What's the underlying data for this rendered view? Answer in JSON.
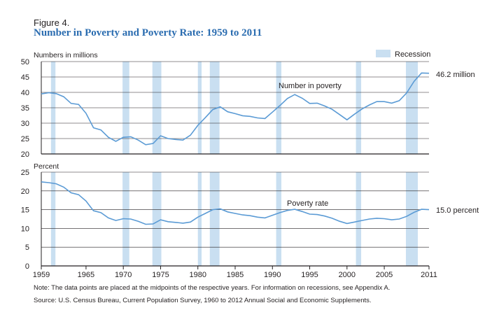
{
  "figure_label": "Figure 4.",
  "title": "Number in Poverty and Poverty Rate: 1959 to 2011",
  "note": "Note: The data points are placed at the midpoints of the respective years. For information on recessions, see Appendix A.",
  "source": "Source: U.S. Census Bureau, Current Population Survey, 1960 to 2012 Annual Social and Economic Supplements.",
  "colors": {
    "line": "#5b9bd5",
    "recession": "#c9dff1",
    "title": "#2a6cb0",
    "axis": "#231f20"
  },
  "chart_data": [
    {
      "type": "line",
      "ylabel": "Numbers in millions",
      "ylim": [
        20,
        50
      ],
      "yticks": [
        20,
        25,
        30,
        35,
        40,
        45,
        50
      ],
      "grid": true,
      "legend": {
        "label": "Recession",
        "placement": "top-right"
      },
      "series": [
        {
          "name": "Number in poverty",
          "end_label": "46.2 million",
          "x": [
            1959,
            1960,
            1961,
            1962,
            1963,
            1964,
            1965,
            1966,
            1967,
            1968,
            1969,
            1970,
            1971,
            1972,
            1973,
            1974,
            1975,
            1976,
            1977,
            1978,
            1979,
            1980,
            1981,
            1982,
            1983,
            1984,
            1985,
            1986,
            1987,
            1988,
            1989,
            1990,
            1991,
            1992,
            1993,
            1994,
            1995,
            1996,
            1997,
            1998,
            1999,
            2000,
            2001,
            2002,
            2003,
            2004,
            2005,
            2006,
            2007,
            2008,
            2009,
            2010,
            2011
          ],
          "values": [
            39.5,
            39.9,
            39.6,
            38.6,
            36.4,
            36.1,
            33.2,
            28.5,
            27.8,
            25.4,
            24.1,
            25.4,
            25.6,
            24.5,
            23.0,
            23.4,
            25.9,
            25.0,
            24.7,
            24.5,
            26.1,
            29.3,
            31.8,
            34.4,
            35.3,
            33.7,
            33.1,
            32.4,
            32.2,
            31.7,
            31.5,
            33.6,
            35.7,
            38.0,
            39.3,
            38.1,
            36.4,
            36.5,
            35.6,
            34.5,
            32.8,
            31.1,
            32.9,
            34.6,
            35.9,
            37.0,
            37.0,
            36.5,
            37.3,
            39.8,
            43.6,
            46.3,
            46.2
          ]
        }
      ],
      "recessions": [
        [
          1960.3,
          1960.9
        ],
        [
          1969.9,
          1970.8
        ],
        [
          1973.9,
          1975.1
        ],
        [
          1980.0,
          1980.5
        ],
        [
          1981.6,
          1982.9
        ],
        [
          1990.5,
          1991.2
        ],
        [
          2001.2,
          2001.9
        ],
        [
          2007.9,
          2009.5
        ]
      ]
    },
    {
      "type": "line",
      "ylabel": "Percent",
      "ylim": [
        0,
        25
      ],
      "yticks": [
        0,
        5,
        10,
        15,
        20,
        25
      ],
      "grid": true,
      "xlim": [
        1959,
        2011
      ],
      "xticks": [
        1959,
        1965,
        1970,
        1975,
        1980,
        1985,
        1990,
        1995,
        2000,
        2005,
        2011
      ],
      "series": [
        {
          "name": "Poverty rate",
          "end_label": "15.0 percent",
          "x": [
            1959,
            1960,
            1961,
            1962,
            1963,
            1964,
            1965,
            1966,
            1967,
            1968,
            1969,
            1970,
            1971,
            1972,
            1973,
            1974,
            1975,
            1976,
            1977,
            1978,
            1979,
            1980,
            1981,
            1982,
            1983,
            1984,
            1985,
            1986,
            1987,
            1988,
            1989,
            1990,
            1991,
            1992,
            1993,
            1994,
            1995,
            1996,
            1997,
            1998,
            1999,
            2000,
            2001,
            2002,
            2003,
            2004,
            2005,
            2006,
            2007,
            2008,
            2009,
            2010,
            2011
          ],
          "values": [
            22.4,
            22.2,
            21.9,
            21.0,
            19.5,
            19.0,
            17.3,
            14.7,
            14.2,
            12.8,
            12.1,
            12.6,
            12.5,
            11.9,
            11.1,
            11.2,
            12.3,
            11.8,
            11.6,
            11.4,
            11.7,
            13.0,
            14.0,
            15.0,
            15.2,
            14.4,
            14.0,
            13.6,
            13.4,
            13.0,
            12.8,
            13.5,
            14.2,
            14.8,
            15.1,
            14.5,
            13.8,
            13.7,
            13.3,
            12.7,
            11.9,
            11.3,
            11.7,
            12.1,
            12.5,
            12.7,
            12.6,
            12.3,
            12.5,
            13.2,
            14.3,
            15.1,
            15.0
          ]
        }
      ],
      "recessions": [
        [
          1960.3,
          1960.9
        ],
        [
          1969.9,
          1970.8
        ],
        [
          1973.9,
          1975.1
        ],
        [
          1980.0,
          1980.5
        ],
        [
          1981.6,
          1982.9
        ],
        [
          1990.5,
          1991.2
        ],
        [
          2001.2,
          2001.9
        ],
        [
          2007.9,
          2009.5
        ]
      ]
    }
  ]
}
